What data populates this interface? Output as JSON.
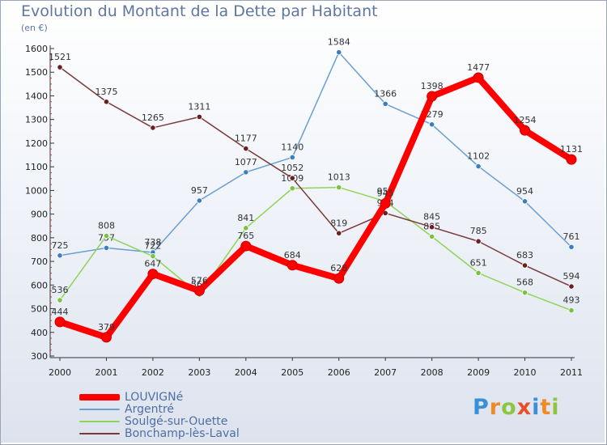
{
  "title": "Evolution du Montant de la Dette par Habitant",
  "unit": "(en €)",
  "logo": {
    "text": "Proxiti",
    "letter_colors": [
      "#3b8fd6",
      "#f08a24",
      "#8cc63f",
      "#e84e2a",
      "#3b8fd6",
      "#f08a24",
      "#8cc63f"
    ]
  },
  "chart_data": {
    "type": "line",
    "x": [
      2000,
      2001,
      2002,
      2003,
      2004,
      2005,
      2006,
      2007,
      2008,
      2009,
      2010,
      2011
    ],
    "ylim": [
      300,
      1600
    ],
    "yticks": [
      300,
      400,
      500,
      600,
      700,
      800,
      900,
      1000,
      1100,
      1200,
      1300,
      1400,
      1500,
      1600
    ],
    "grid": false,
    "legend": "bottom-left",
    "series": [
      {
        "name": "Argentré",
        "color": "#6a9fd4",
        "marker": "#3a7fc4",
        "values": [
          725,
          757,
          738,
          957,
          1077,
          1140,
          1584,
          1366,
          1279,
          1102,
          954,
          761
        ],
        "labels": [
          "725",
          "757",
          "738",
          "957",
          "1077",
          "1140",
          "1584",
          "1366",
          "1279",
          "1102",
          "954",
          "761"
        ]
      },
      {
        "name": "Soulgé-sur-Ouette",
        "color": "#8fd45a",
        "marker": "#7cc242",
        "values": [
          536,
          808,
          722,
          560,
          841,
          1009,
          1013,
          954,
          805,
          651,
          568,
          493
        ],
        "labels": [
          "536",
          "808",
          "722",
          "560",
          "841",
          "1009",
          "1013",
          "954",
          "805",
          "651",
          "568",
          "493"
        ]
      },
      {
        "name": "Bonchamp-lès-Laval",
        "color": "#7a3a3a",
        "marker": "#6a2020",
        "values": [
          1521,
          1375,
          1265,
          1311,
          1177,
          1052,
          819,
          904,
          845,
          785,
          683,
          594
        ],
        "labels": [
          "1521",
          "1375",
          "1265",
          "1311",
          "1177",
          "1052",
          "819",
          "904",
          "845",
          "785",
          "683",
          "594"
        ]
      },
      {
        "name": "LOUVIGNé",
        "color": "#ff0000",
        "marker": "#ff0000",
        "values": [
          444,
          379,
          647,
          576,
          765,
          684,
          628,
          945,
          1398,
          1477,
          1254,
          1131
        ],
        "labels": [
          "444",
          "379",
          "647",
          "576",
          "765",
          "684",
          "628",
          "945",
          "1398",
          "1477",
          "1254",
          "1131"
        ]
      }
    ]
  },
  "legend_items": [
    {
      "label": "LOUVIGNé",
      "color": "#ff0000"
    },
    {
      "label": "Argentré",
      "color": "#6a9fd4"
    },
    {
      "label": "Soulgé-sur-Ouette",
      "color": "#8fd45a"
    },
    {
      "label": "Bonchamp-lès-Laval",
      "color": "#7a3a3a"
    }
  ]
}
